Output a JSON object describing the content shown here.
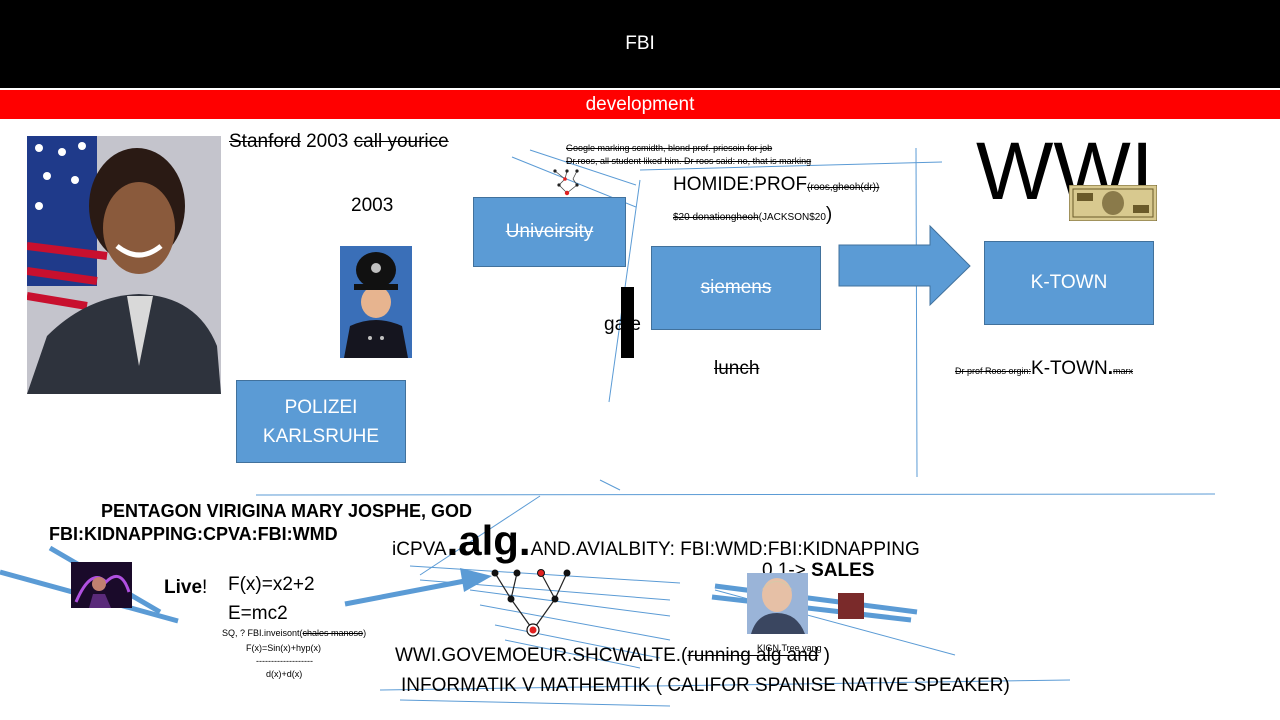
{
  "header": {
    "title": "FBI"
  },
  "subheader": {
    "title": "development"
  },
  "top_text": {
    "stanford_strike1": "Stanford",
    "stanford_mid": " 2003 ",
    "stanford_strike2": "call yourice",
    "year": "2003"
  },
  "notes": {
    "google_line1": "Google marking scmidth, blond prof. priesoin for job",
    "google_line2": "Dr.roos, all student liked him. Dr roos said: no, that is marking",
    "homide_main": "HOMIDE:PROF",
    "homide_small": "(roos,gheoh(dr))",
    "donation_strike": "$20 donationgheoh",
    "donation_plain": "(JACKSON$20",
    "donation_paren": ")",
    "gate": "gate",
    "lunch": "lunch",
    "wwi": "WWI",
    "ktown_prefix": "Dr prof Roos orgin:",
    "ktown_main": "K-TOWN",
    "ktown_dot": ".",
    "ktown_suffix": "marx"
  },
  "boxes": {
    "university": "Univeirsity",
    "siemens": "siemens",
    "ktown": "K-TOWN",
    "polizei_line1": "POLIZEI",
    "polizei_line2": "KARLSRUHE"
  },
  "bottom": {
    "pentagon": "PENTAGON VIRIGINA MARY JOSPHE, GOD",
    "fbi_kidnapping": "FBI:KIDNAPPING:CPVA:FBI:WMD",
    "icpva_prefix": "iCPVA",
    "alg": ".alg.",
    "icpva_suffix": "AND.AVIALBITY: FBI:WMD:FBI:KIDNAPPING",
    "sales_prefix": "0.1-> ",
    "sales": "SALES",
    "live": "Live",
    "live_bang": "!",
    "fx": "F(x)=x2+2",
    "emc": "E=mc2",
    "sq_prefix": "SQ, ? FBI.inveisont(",
    "sq_strike": "chales manoso",
    "sq_suffix": ")",
    "fx_sin": "F(x)=Sin(x)+hyp(x)",
    "dashes": "-------------------",
    "dx": "d(x)+d(x)",
    "wwi_gov_prefix": "WWI.GOVEMOEUR.SHCWALTE.(",
    "wwi_gov_strike": "running alg and",
    "wwi_gov_suffix": " )",
    "kign": "KIGN.Tree yang",
    "informatik": "INFORMATIK V MATHEMTIK ( CALIFOR SPANISE NATIVE SPEAKER)"
  },
  "colors": {
    "header_bg": "#000000",
    "subheader_bg": "#ff0000",
    "box_fill": "#5b9bd5",
    "box_border": "#41719c",
    "line": "#5b9bd5"
  },
  "icons": {
    "portrait": "woman-portrait",
    "police": "police-officer-photo",
    "banknote": "banknote-image",
    "tree_small": "tree-diagram-icon",
    "tree_large": "tree-diagram-icon",
    "performer": "performer-photo",
    "man_photo": "man-photo",
    "flag_square": "small-photo"
  }
}
